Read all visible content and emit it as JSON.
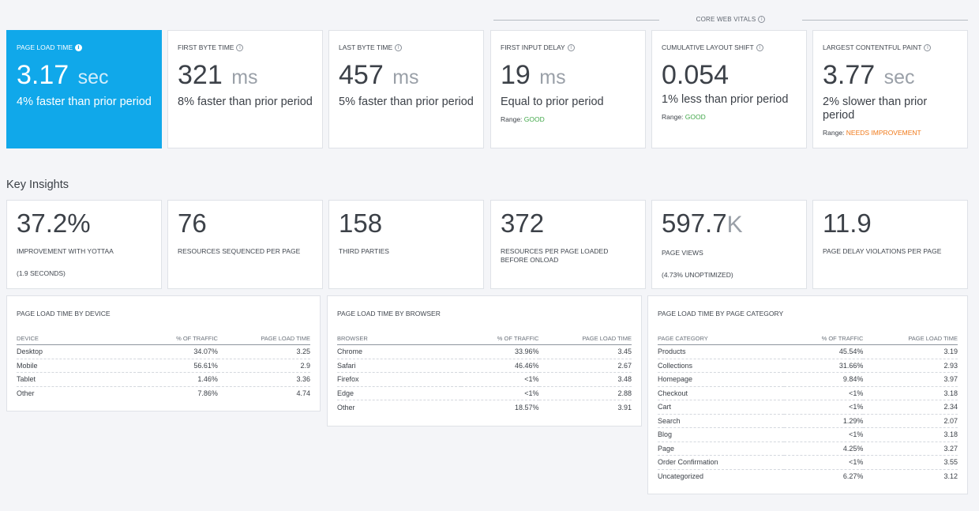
{
  "core_web_vitals": {
    "title": "CORE WEB VITALS"
  },
  "metrics": [
    {
      "label": "PAGE LOAD TIME",
      "value": "3.17",
      "unit": "sec",
      "comparison": "4% faster than prior period",
      "range_label": "",
      "range_value": ""
    },
    {
      "label": "FIRST BYTE TIME",
      "value": "321",
      "unit": "ms",
      "comparison": "8% faster than prior period",
      "range_label": "",
      "range_value": ""
    },
    {
      "label": "LAST BYTE TIME",
      "value": "457",
      "unit": "ms",
      "comparison": "5% faster than prior period",
      "range_label": "",
      "range_value": ""
    },
    {
      "label": "FIRST INPUT DELAY",
      "value": "19",
      "unit": "ms",
      "comparison": "Equal to prior period",
      "range_label": "Range:",
      "range_value": "GOOD"
    },
    {
      "label": "CUMULATIVE LAYOUT SHIFT",
      "value": "0.054",
      "unit": "",
      "comparison": "1% less than prior period",
      "range_label": "Range:",
      "range_value": "GOOD"
    },
    {
      "label": "LARGEST CONTENTFUL PAINT",
      "value": "3.77",
      "unit": "sec",
      "comparison": "2% slower than prior period",
      "range_label": "Range:",
      "range_value": "NEEDS IMPROVEMENT"
    }
  ],
  "key_insights": {
    "title": "Key Insights",
    "items": [
      {
        "value": "37.2%",
        "unit": "",
        "label": "IMPROVEMENT WITH YOTTAA",
        "sub": "(1.9 SECONDS)"
      },
      {
        "value": "76",
        "unit": "",
        "label": "RESOURCES SEQUENCED PER PAGE",
        "sub": ""
      },
      {
        "value": "158",
        "unit": "",
        "label": "THIRD PARTIES",
        "sub": ""
      },
      {
        "value": "372",
        "unit": "",
        "label": "RESOURCES PER PAGE LOADED BEFORE ONLOAD",
        "sub": ""
      },
      {
        "value": "597.7",
        "unit": "K",
        "label": "PAGE VIEWS",
        "sub": "(4.73% UNOPTIMIZED)"
      },
      {
        "value": "11.9",
        "unit": "",
        "label": "PAGE DELAY VIOLATIONS PER PAGE",
        "sub": ""
      }
    ]
  },
  "tables": [
    {
      "title": "PAGE LOAD TIME BY DEVICE",
      "headers": [
        "DEVICE",
        "% OF TRAFFIC",
        "PAGE LOAD TIME"
      ],
      "rows": [
        [
          "Desktop",
          "34.07%",
          "3.25"
        ],
        [
          "Mobile",
          "56.61%",
          "2.9"
        ],
        [
          "Tablet",
          "1.46%",
          "3.36"
        ],
        [
          "Other",
          "7.86%",
          "4.74"
        ]
      ]
    },
    {
      "title": "PAGE LOAD TIME BY BROWSER",
      "headers": [
        "BROWSER",
        "% OF TRAFFIC",
        "PAGE LOAD TIME"
      ],
      "rows": [
        [
          "Chrome",
          "33.96%",
          "3.45"
        ],
        [
          "Safari",
          "46.46%",
          "2.67"
        ],
        [
          "Firefox",
          "<1%",
          "3.48"
        ],
        [
          "Edge",
          "<1%",
          "2.88"
        ],
        [
          "Other",
          "18.57%",
          "3.91"
        ]
      ]
    },
    {
      "title": "PAGE LOAD TIME BY PAGE CATEGORY",
      "headers": [
        "PAGE CATEGORY",
        "% OF TRAFFIC",
        "PAGE LOAD TIME"
      ],
      "rows": [
        [
          "Products",
          "45.54%",
          "3.19"
        ],
        [
          "Collections",
          "31.66%",
          "2.93"
        ],
        [
          "Homepage",
          "9.84%",
          "3.97"
        ],
        [
          "Checkout",
          "<1%",
          "3.18"
        ],
        [
          "Cart",
          "<1%",
          "2.34"
        ],
        [
          "Search",
          "1.29%",
          "2.07"
        ],
        [
          "Blog",
          "<1%",
          "3.18"
        ],
        [
          "Page",
          "4.25%",
          "3.27"
        ],
        [
          "Order Confirmation",
          "<1%",
          "3.55"
        ],
        [
          "Uncategorized",
          "6.27%",
          "3.12"
        ]
      ]
    }
  ],
  "colors": {
    "accent": "#10a8ea",
    "good": "#42a84a",
    "needs_improvement": "#f07a1a"
  },
  "icons": {
    "info": "info-circle-icon"
  }
}
